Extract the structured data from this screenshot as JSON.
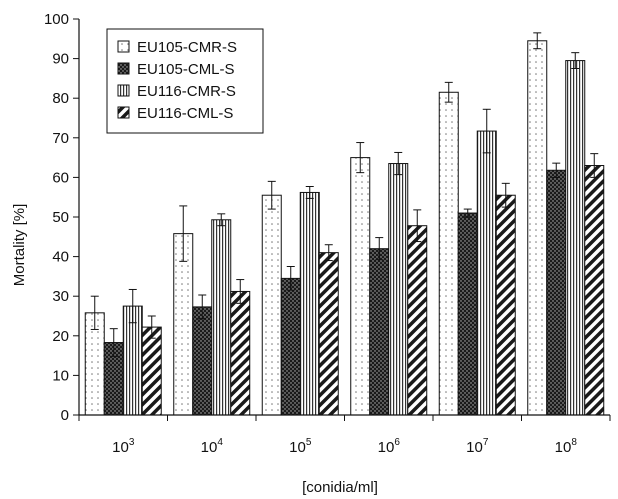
{
  "chart_data": {
    "type": "bar",
    "title": "",
    "xlabel": "[conidia/ml]",
    "ylabel": "Mortality [%]",
    "ylim": [
      0,
      100
    ],
    "yticks": [
      0,
      10,
      20,
      30,
      40,
      50,
      60,
      70,
      80,
      90,
      100
    ],
    "grid": false,
    "legend_position": "top-left",
    "categories": [
      {
        "base": "10",
        "exp": "3"
      },
      {
        "base": "10",
        "exp": "4"
      },
      {
        "base": "10",
        "exp": "5"
      },
      {
        "base": "10",
        "exp": "6"
      },
      {
        "base": "10",
        "exp": "7"
      },
      {
        "base": "10",
        "exp": "8"
      }
    ],
    "series": [
      {
        "name": "EU105-CMR-S",
        "pattern": "dots",
        "values": [
          25.8,
          45.8,
          55.5,
          65.0,
          81.5,
          94.5
        ],
        "errors": [
          4.2,
          7.0,
          3.5,
          3.8,
          2.5,
          2.0
        ]
      },
      {
        "name": "EU105-CML-S",
        "pattern": "dense-dark",
        "values": [
          18.3,
          27.3,
          34.5,
          42.0,
          51.0,
          61.8
        ],
        "errors": [
          3.5,
          3.0,
          3.0,
          2.8,
          1.0,
          1.8
        ]
      },
      {
        "name": "EU116-CMR-S",
        "pattern": "vertical-lines",
        "values": [
          27.5,
          49.3,
          56.2,
          63.5,
          71.7,
          89.5
        ],
        "errors": [
          4.2,
          1.5,
          1.5,
          2.8,
          5.5,
          2.0
        ]
      },
      {
        "name": "EU116-CML-S",
        "pattern": "diagonal-stripes",
        "values": [
          22.2,
          31.2,
          41.0,
          47.8,
          55.5,
          63.0
        ],
        "errors": [
          2.8,
          3.0,
          2.0,
          4.0,
          3.0,
          3.0
        ]
      }
    ]
  }
}
